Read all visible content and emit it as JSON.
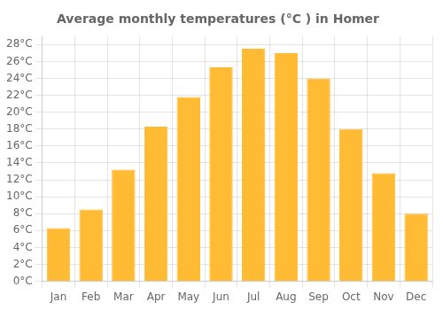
{
  "chart_data": {
    "type": "bar",
    "title": "Average monthly temperatures (°C ) in Homer",
    "categories": [
      "Jan",
      "Feb",
      "Mar",
      "Apr",
      "May",
      "Jun",
      "Jul",
      "Aug",
      "Sep",
      "Oct",
      "Nov",
      "Dec"
    ],
    "values": [
      6.3,
      8.5,
      13.2,
      18.3,
      21.8,
      25.3,
      27.5,
      27.0,
      24.0,
      18.0,
      12.8,
      8.0
    ],
    "color": "#FFBB33",
    "ylim": [
      0,
      29
    ],
    "yticks": [
      {
        "value": 0,
        "label": "0°C"
      },
      {
        "value": 2,
        "label": "2°C"
      },
      {
        "value": 4,
        "label": "4°C"
      },
      {
        "value": 6,
        "label": "6°C"
      },
      {
        "value": 8,
        "label": "8°C"
      },
      {
        "value": 10,
        "label": "10°C"
      },
      {
        "value": 12,
        "label": "12°C"
      },
      {
        "value": 14,
        "label": "14°C"
      },
      {
        "value": 16,
        "label": "16°C"
      },
      {
        "value": 18,
        "label": "18°C"
      },
      {
        "value": 20,
        "label": "20°C"
      },
      {
        "value": 22,
        "label": "22°C"
      },
      {
        "value": 24,
        "label": "24°C"
      },
      {
        "value": 26,
        "label": "26°C"
      },
      {
        "value": 28,
        "label": "28°C"
      }
    ],
    "grid": true
  }
}
